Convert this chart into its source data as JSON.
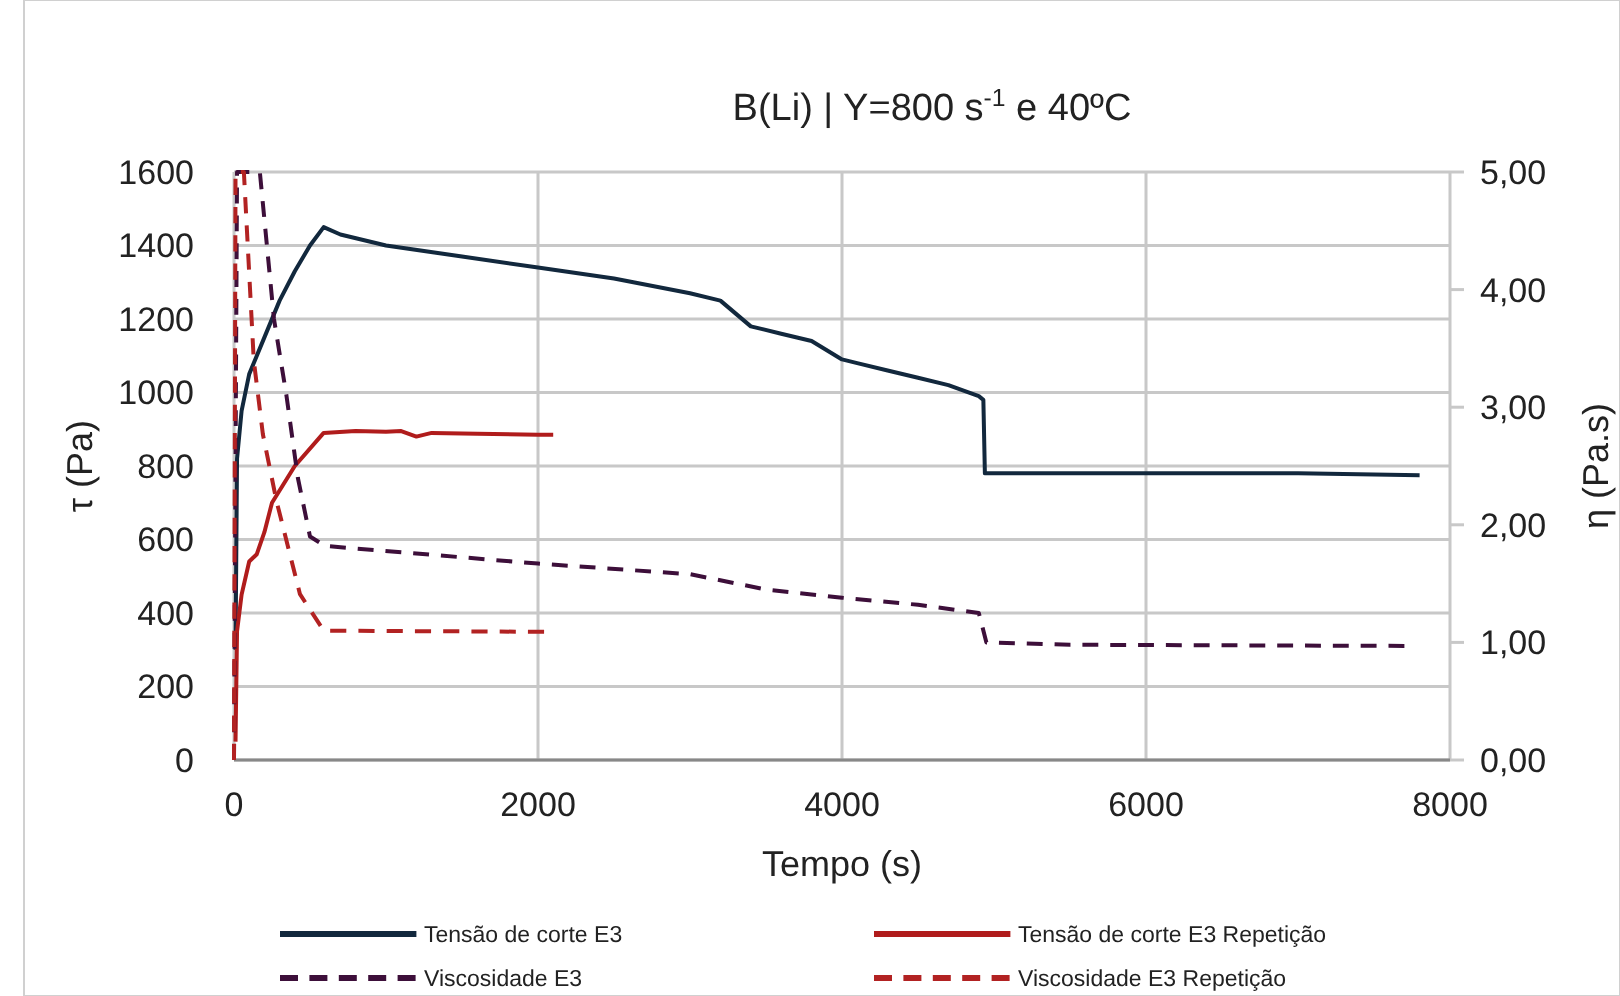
{
  "chart_data": {
    "type": "line",
    "title": "B(Li) | Y=800 s$^{-1}$ e 40ºC",
    "xlabel": "Tempo (s)",
    "ylabel": "τ (Pa)",
    "y2label": "η (Pa.s)",
    "xlim": [
      0,
      8000
    ],
    "xticks": [
      0,
      2000,
      4000,
      6000,
      8000
    ],
    "ylim": [
      0,
      1600
    ],
    "yticks": [
      0,
      200,
      400,
      600,
      800,
      1000,
      1200,
      1400,
      1600
    ],
    "y2lim": [
      0,
      5
    ],
    "y2ticks": [
      {
        "value": 0,
        "label": "0,00"
      },
      {
        "value": 1,
        "label": "1,00"
      },
      {
        "value": 2,
        "label": "2,00"
      },
      {
        "value": 3,
        "label": "3,00"
      },
      {
        "value": 4,
        "label": "4,00"
      },
      {
        "value": 5,
        "label": "5,00"
      }
    ],
    "grid": true,
    "legend": "bottom",
    "series": [
      {
        "name": "Tensão de corte E3",
        "color": "#12283d",
        "line_style": "solid",
        "x": [
          10,
          20,
          50,
          100,
          200,
          300,
          400,
          500,
          590,
          700,
          1000,
          1500,
          2000,
          2500,
          3000,
          3200,
          3400,
          3600,
          3800,
          4000,
          4100,
          4300,
          4500,
          4700,
          4900,
          4930,
          4940,
          5500,
          6000,
          7000,
          7800
        ],
        "values": [
          300,
          820,
          950,
          1050,
          1150,
          1250,
          1330,
          1400,
          1450,
          1430,
          1400,
          1370,
          1340,
          1310,
          1270,
          1250,
          1180,
          1160,
          1140,
          1090,
          1080,
          1060,
          1040,
          1020,
          990,
          980,
          780,
          780,
          780,
          780,
          775
        ]
      },
      {
        "name": "Tensão de corte E3 Repetição",
        "color": "#b01c1c",
        "line_style": "solid",
        "x": [
          10,
          20,
          50,
          100,
          150,
          200,
          250,
          400,
          590,
          800,
          1000,
          1100,
          1200,
          1300,
          1600,
          2000,
          2100
        ],
        "values": [
          50,
          350,
          450,
          540,
          560,
          620,
          700,
          800,
          890,
          895,
          893,
          895,
          880,
          890,
          888,
          885,
          885
        ]
      },
      {
        "name": "Viscosidade E3",
        "color": "#3d0f3a",
        "line_style": "dashed",
        "axis": "y2",
        "x": [
          0,
          20,
          170,
          263,
          345,
          420,
          500,
          600,
          2000,
          3000,
          3500,
          4000,
          4500,
          4900,
          4950,
          5500,
          7700
        ],
        "values": [
          0,
          5,
          5,
          3.75,
          3.1,
          2.4,
          1.9,
          1.82,
          1.67,
          1.58,
          1.45,
          1.38,
          1.32,
          1.25,
          1.0,
          0.98,
          0.97
        ]
      },
      {
        "name": "Viscosidade E3 Repetição",
        "color": "#b22222",
        "line_style": "dashed",
        "axis": "y2",
        "x": [
          0,
          10,
          65,
          130,
          190,
          280,
          434,
          590,
          2040
        ],
        "values": [
          0,
          5,
          5,
          3.4,
          2.77,
          2.2,
          1.41,
          1.1,
          1.09
        ]
      }
    ]
  }
}
